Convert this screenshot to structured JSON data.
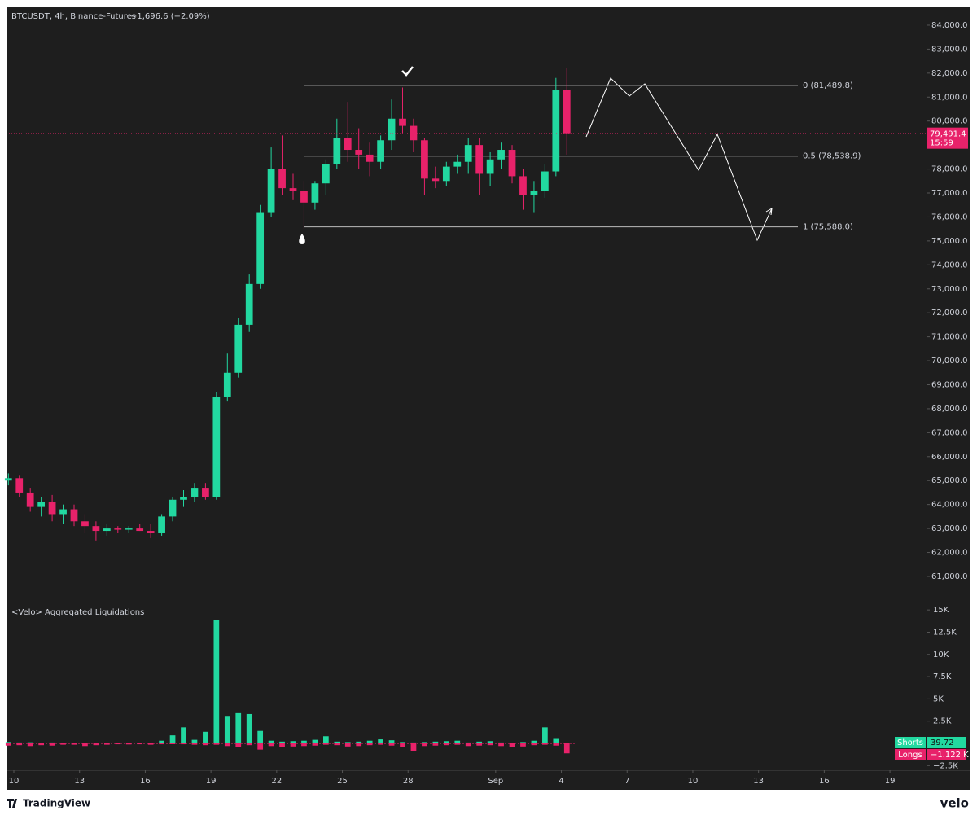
{
  "chart_data": [
    {
      "type": "candlestick",
      "title": "BTCUSDT, 4h, Binance-Futures",
      "subtitle": "−1,696.6 (−2.09%)",
      "colors": {
        "up": "#22d8a0",
        "down": "#e8226a"
      },
      "x": [
        -0.25,
        0.25,
        0.75,
        1.25,
        1.75,
        2.25,
        2.75,
        3.25,
        3.75,
        4.25,
        4.75,
        5.25,
        5.75,
        6.25,
        6.75,
        7.25,
        7.75,
        8.25,
        8.75,
        9.25,
        9.75,
        10.25,
        10.75,
        11.25,
        11.75,
        12.25,
        12.75,
        13.25,
        13.75,
        14.25,
        14.75,
        15.25,
        15.75,
        16.25,
        16.75,
        17.25,
        17.75,
        18.25,
        18.75,
        19.25,
        19.75,
        20.25,
        20.75,
        21.25,
        21.75,
        22.25,
        22.75,
        23.25,
        23.75,
        24.25,
        24.75,
        25.25
      ],
      "ohlc": [
        [
          65000,
          65300,
          64800,
          65100
        ],
        [
          65100,
          65200,
          64300,
          64500
        ],
        [
          64500,
          64700,
          63700,
          63900
        ],
        [
          63900,
          64300,
          63500,
          64100
        ],
        [
          64100,
          64400,
          63300,
          63600
        ],
        [
          63600,
          64000,
          63200,
          63800
        ],
        [
          63800,
          64000,
          63100,
          63300
        ],
        [
          63300,
          63600,
          62800,
          63100
        ],
        [
          63100,
          63300,
          62500,
          62900
        ],
        [
          62900,
          63200,
          62700,
          63000
        ],
        [
          63000,
          63100,
          62800,
          62950
        ],
        [
          62950,
          63100,
          62800,
          63000
        ],
        [
          63000,
          63200,
          62900,
          62900
        ],
        [
          62900,
          63200,
          62600,
          62800
        ],
        [
          62800,
          63600,
          62700,
          63500
        ],
        [
          63500,
          64300,
          63300,
          64200
        ],
        [
          64200,
          64600,
          63900,
          64300
        ],
        [
          64300,
          64900,
          64100,
          64700
        ],
        [
          64700,
          64900,
          64200,
          64300
        ],
        [
          64300,
          68700,
          64200,
          68500
        ],
        [
          68500,
          70300,
          68300,
          69500
        ],
        [
          69500,
          71800,
          69300,
          71500
        ],
        [
          71500,
          73600,
          71200,
          73200
        ],
        [
          73200,
          76500,
          73000,
          76200
        ],
        [
          76200,
          78900,
          76000,
          78000
        ],
        [
          78000,
          79400,
          76900,
          77200
        ],
        [
          77200,
          77800,
          76700,
          77100
        ],
        [
          77100,
          77500,
          75500,
          76600
        ],
        [
          76600,
          77500,
          76300,
          77400
        ],
        [
          77400,
          78400,
          76900,
          78200
        ],
        [
          78200,
          80100,
          78000,
          79300
        ],
        [
          79300,
          80800,
          78300,
          78800
        ],
        [
          78800,
          79700,
          78000,
          78600
        ],
        [
          78600,
          79100,
          77700,
          78300
        ],
        [
          78300,
          79400,
          78000,
          79200
        ],
        [
          79200,
          80900,
          78800,
          80100
        ],
        [
          80100,
          81400,
          79500,
          79800
        ],
        [
          79800,
          80100,
          78700,
          79200
        ],
        [
          79200,
          79300,
          76900,
          77600
        ],
        [
          77600,
          78100,
          77200,
          77500
        ],
        [
          77500,
          78300,
          77300,
          78100
        ],
        [
          78100,
          78600,
          77800,
          78300
        ],
        [
          78300,
          79300,
          77800,
          79000
        ],
        [
          79000,
          79300,
          76900,
          77800
        ],
        [
          77800,
          78700,
          77300,
          78400
        ],
        [
          78400,
          79100,
          78000,
          78800
        ],
        [
          78800,
          79000,
          77400,
          77700
        ],
        [
          77700,
          78000,
          76300,
          76900
        ],
        [
          76900,
          77500,
          76200,
          77100
        ],
        [
          77100,
          78200,
          76800,
          77900
        ],
        [
          77900,
          81800,
          77700,
          81300
        ],
        [
          81300,
          82200,
          78600,
          79491.4
        ]
      ],
      "xlim": [
        -0.335,
        41.67
      ],
      "xticks": [
        {
          "value": 0,
          "label": "10"
        },
        {
          "value": 3,
          "label": "13"
        },
        {
          "value": 6,
          "label": "16"
        },
        {
          "value": 9,
          "label": "19"
        },
        {
          "value": 12,
          "label": "22"
        },
        {
          "value": 15,
          "label": "25"
        },
        {
          "value": 18,
          "label": "28"
        },
        {
          "value": 22,
          "label": "Sep"
        },
        {
          "value": 25,
          "label": "4"
        },
        {
          "value": 28,
          "label": "7"
        },
        {
          "value": 31,
          "label": "10"
        },
        {
          "value": 34,
          "label": "13"
        },
        {
          "value": 37,
          "label": "16"
        },
        {
          "value": 40,
          "label": "19"
        }
      ],
      "ylim": [
        59980,
        84780
      ],
      "yticks": [
        {
          "value": 84000,
          "label": "84,000.0"
        },
        {
          "value": 83000,
          "label": "83,000.0"
        },
        {
          "value": 82000,
          "label": "82,000.0"
        },
        {
          "value": 81000,
          "label": "81,000.0"
        },
        {
          "value": 80000,
          "label": "80,000.0"
        },
        {
          "value": 79000,
          "label": "79,000.0"
        },
        {
          "value": 78000,
          "label": "78,000.0"
        },
        {
          "value": 77000,
          "label": "77,000.0"
        },
        {
          "value": 76000,
          "label": "76,000.0"
        },
        {
          "value": 75000,
          "label": "75,000.0"
        },
        {
          "value": 74000,
          "label": "74,000.0"
        },
        {
          "value": 73000,
          "label": "73,000.0"
        },
        {
          "value": 72000,
          "label": "72,000.0"
        },
        {
          "value": 71000,
          "label": "71,000.0"
        },
        {
          "value": 70000,
          "label": "70,000.0"
        },
        {
          "value": 69000,
          "label": "69,000.0"
        },
        {
          "value": 68000,
          "label": "68,000.0"
        },
        {
          "value": 67000,
          "label": "67,000.0"
        },
        {
          "value": 66000,
          "label": "66,000.0"
        },
        {
          "value": 65000,
          "label": "65,000.0"
        },
        {
          "value": 64000,
          "label": "64,000.0"
        },
        {
          "value": 63000,
          "label": "63,000.0"
        },
        {
          "value": 62000,
          "label": "62,000.0"
        },
        {
          "value": 61000,
          "label": "61,000.0"
        }
      ],
      "levels": [
        {
          "value": 81489.8,
          "label": "0 (81,489.8)"
        },
        {
          "value": 78538.9,
          "label": "0.5 (78,538.9)"
        },
        {
          "value": 75588.0,
          "label": "1 (75,588.0)"
        }
      ],
      "last_price": {
        "value": 79491.4,
        "label": "79,491.4",
        "countdown": "15:59"
      }
    },
    {
      "type": "bar",
      "title": "<Velo> Aggregated Liquidations",
      "series": [
        {
          "name": "Shorts",
          "color": "#22d8a0",
          "current_label": "39.72",
          "values": [
            150,
            100,
            120,
            80,
            100,
            60,
            50,
            80,
            60,
            40,
            50,
            40,
            30,
            50,
            300,
            900,
            1800,
            400,
            1300,
            13900,
            3000,
            3400,
            3300,
            1400,
            300,
            200,
            250,
            300,
            400,
            800,
            200,
            150,
            200,
            300,
            450,
            350,
            150,
            100,
            150,
            200,
            250,
            300,
            100,
            200,
            250,
            100,
            80,
            150,
            300,
            1800,
            500,
            39.72
          ]
        },
        {
          "name": "Longs",
          "color": "#e8226a",
          "current_label": "−1.122 K",
          "values": [
            -250,
            -200,
            -300,
            -200,
            -250,
            -150,
            -150,
            -300,
            -200,
            -150,
            -100,
            -120,
            -100,
            -150,
            -100,
            -80,
            -100,
            -150,
            -200,
            -150,
            -300,
            -400,
            -200,
            -700,
            -300,
            -400,
            -350,
            -300,
            -250,
            -150,
            -200,
            -350,
            -300,
            -200,
            -150,
            -250,
            -400,
            -900,
            -300,
            -250,
            -200,
            -150,
            -300,
            -250,
            -200,
            -300,
            -400,
            -350,
            -200,
            -150,
            -250,
            -1122
          ]
        }
      ],
      "ylim": [
        -2930,
        15840
      ],
      "yticks": [
        {
          "value": 15000,
          "label": "15K"
        },
        {
          "value": 12500,
          "label": "12.5K"
        },
        {
          "value": 10000,
          "label": "10K"
        },
        {
          "value": 7500,
          "label": "7.5K"
        },
        {
          "value": 5000,
          "label": "5K"
        },
        {
          "value": 2500,
          "label": "2.5K"
        },
        {
          "value": -2500,
          "label": "−2.5K"
        }
      ]
    }
  ],
  "footer": {
    "brand": "TradingView",
    "source": "velo"
  }
}
